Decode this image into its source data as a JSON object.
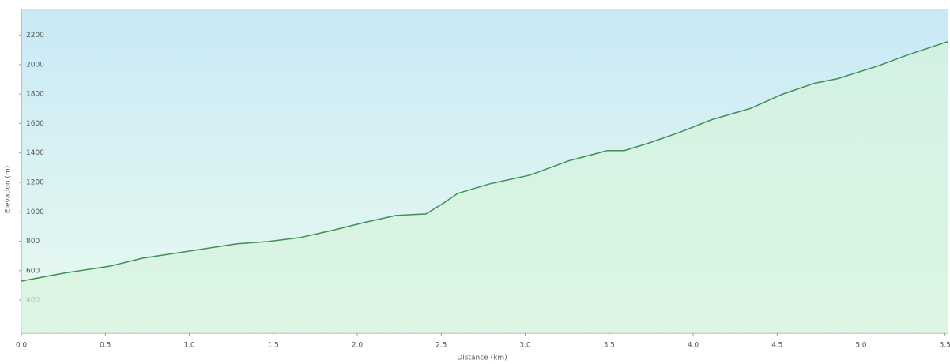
{
  "chart_data": {
    "type": "area",
    "xlabel": "Distance (km)",
    "ylabel": "Elevation (m)",
    "x": [
      0,
      0.25,
      0.53,
      0.72,
      1.0,
      1.28,
      1.47,
      1.66,
      1.85,
      2.04,
      2.23,
      2.41,
      2.51,
      2.6,
      2.79,
      3.03,
      3.26,
      3.49,
      3.59,
      3.73,
      3.92,
      4.11,
      4.34,
      4.53,
      4.72,
      4.86,
      5.1,
      5.28,
      5.52
    ],
    "values": [
      529,
      583,
      631,
      685,
      733,
      782,
      798,
      825,
      873,
      927,
      975,
      986,
      1056,
      1126,
      1190,
      1250,
      1347,
      1416,
      1416,
      1465,
      1540,
      1626,
      1702,
      1798,
      1873,
      1905,
      1991,
      2067,
      2158
    ],
    "color": "#3f8f55",
    "fill": "#d6f3dc",
    "xlim": [
      0,
      5.52
    ],
    "ylim": [
      175,
      2375
    ],
    "xticks": [
      {
        "value": 0,
        "label": "0.0"
      },
      0.5,
      {
        "value": 1,
        "label": "1.0"
      },
      1.5,
      {
        "value": 2,
        "label": "2.0"
      },
      2.5,
      {
        "value": 3,
        "label": "3.0"
      },
      3.5,
      {
        "value": 4,
        "label": "4.0"
      },
      4.5,
      {
        "value": 5,
        "label": "5.0"
      },
      5.5
    ],
    "yticks": [
      400,
      600,
      800,
      1000,
      1200,
      1400,
      1600,
      1800,
      2000,
      2200
    ]
  }
}
